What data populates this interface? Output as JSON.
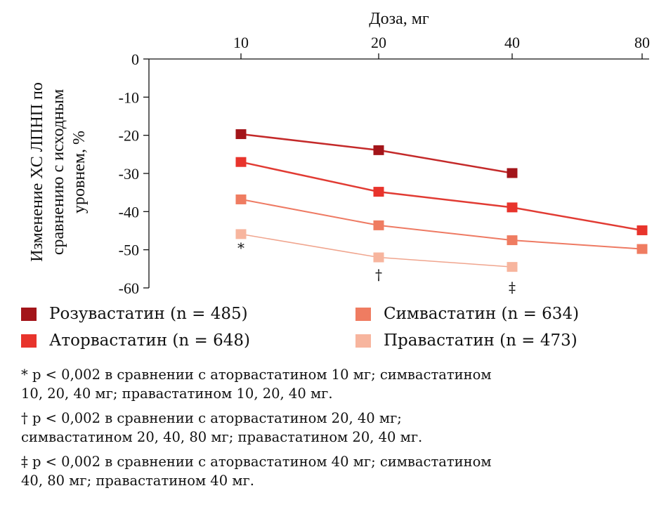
{
  "chart_data": {
    "type": "line",
    "xlabel": "Доза, мг",
    "ylabel_line1": "Изменение ХС ЛПНП по",
    "ylabel_line2": "сравнению с исходным",
    "ylabel_line3": "уровнем, %",
    "x_ticks": [
      "10",
      "20",
      "40",
      "80"
    ],
    "y_ticks": [
      "0",
      "-10",
      "-20",
      "-30",
      "-40",
      "-50",
      "-60"
    ],
    "ylim": [
      -60,
      0
    ],
    "x_scale": "log2",
    "series": [
      {
        "name": "Розувастатин (n = 485)",
        "color": "#a3151a",
        "line_color": "#c42a2a",
        "line_width": 2.5,
        "points": [
          {
            "x": 10,
            "y": -19.7
          },
          {
            "x": 20,
            "y": -23.9
          },
          {
            "x": 40,
            "y": -29.9
          }
        ]
      },
      {
        "name": "Аторвастатин (n = 648)",
        "color": "#e8342c",
        "line_color": "#e13b33",
        "line_width": 2.5,
        "points": [
          {
            "x": 10,
            "y": -27.0
          },
          {
            "x": 20,
            "y": -34.8
          },
          {
            "x": 40,
            "y": -38.9
          },
          {
            "x": 80,
            "y": -44.9
          }
        ]
      },
      {
        "name": "Симвастатин (n = 634)",
        "color": "#ef7c61",
        "line_color": "#ee7a63",
        "line_width": 2,
        "points": [
          {
            "x": 10,
            "y": -36.8
          },
          {
            "x": 20,
            "y": -43.6
          },
          {
            "x": 40,
            "y": -47.5
          },
          {
            "x": 80,
            "y": -49.8
          }
        ]
      },
      {
        "name": "Правастатин (n = 473)",
        "color": "#f7b59e",
        "line_color": "#f0a58e",
        "line_width": 1.5,
        "points": [
          {
            "x": 10,
            "y": -45.9
          },
          {
            "x": 20,
            "y": -52.0
          },
          {
            "x": 40,
            "y": -54.5
          }
        ]
      }
    ],
    "markers": [
      {
        "symbol": "*",
        "x": 10,
        "y": -49.5
      },
      {
        "symbol": "†",
        "x": 20,
        "y": -56.5
      },
      {
        "symbol": "‡",
        "x": 40,
        "y": -59.8
      }
    ],
    "grid": false,
    "legend_position": "bottom"
  },
  "legend": [
    {
      "label": "Розувастатин (n = 485)",
      "color": "#a3151a"
    },
    {
      "label": "Аторвастатин (n = 648)",
      "color": "#e8342c"
    },
    {
      "label": "Симвастатин (n = 634)",
      "color": "#ef7c61"
    },
    {
      "label": "Правастатин (n = 473)",
      "color": "#f7b59e"
    }
  ],
  "footnotes": [
    "* p < 0,002 в сравнении с аторвастатином 10 мг; симвастатином\n10, 20, 40 мг; правастатином 10, 20, 40 мг.",
    "† p < 0,002 в сравнении с аторвастатином 20, 40 мг;\nсимвастатином  20, 40, 80 мг; правастатином 20, 40 мг.",
    "‡ p < 0,002 в сравнении с аторвастатином 40 мг; симвастатином\n40, 80 мг; правастатином 40 мг."
  ]
}
